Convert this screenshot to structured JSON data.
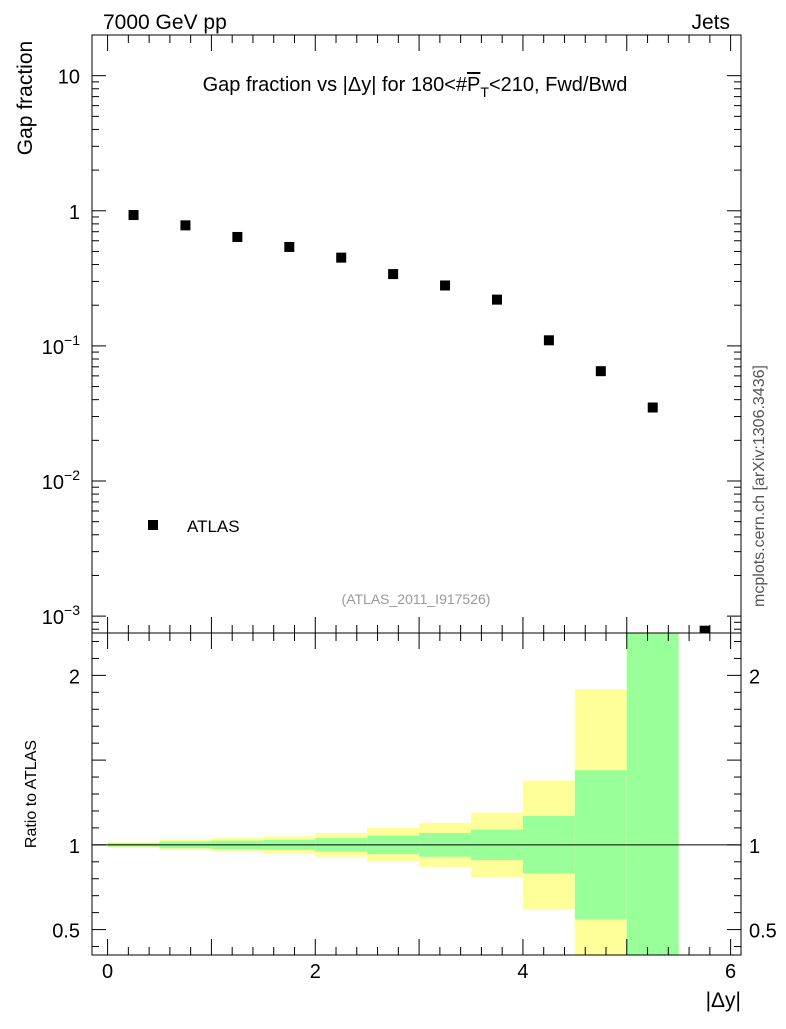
{
  "header": {
    "left": "7000 GeV pp",
    "right": "Jets"
  },
  "side_label": "mcplots.cern.ch [arXiv:1306.3436]",
  "chart_data": [
    {
      "type": "scatter",
      "title": "Gap fraction vs |Δy| for 180<#P̅T<210, Fwd/Bwd",
      "title_parts": {
        "pre": "Gap fraction vs |Δy| for 180<#",
        "sym": "P",
        "sub": "T",
        "post": "<210, Fwd/Bwd"
      },
      "ylabel": "Gap fraction",
      "yscale": "log",
      "ylim": [
        0.00075,
        20
      ],
      "xlim": [
        -0.15,
        6.1
      ],
      "y_ticks": [
        {
          "value": 10,
          "label": "10"
        },
        {
          "value": 1,
          "label": "1"
        },
        {
          "value": 0.1,
          "base": "10",
          "exp": "−1"
        },
        {
          "value": 0.01,
          "base": "10",
          "exp": "−2"
        },
        {
          "value": 0.001,
          "base": "10",
          "exp": "−3"
        }
      ],
      "legend": {
        "position": "bottom-left",
        "label": "ATLAS"
      },
      "watermark": "(ATLAS_2011_I917526)",
      "series": [
        {
          "name": "ATLAS",
          "x": [
            0.25,
            0.75,
            1.25,
            1.75,
            2.25,
            2.75,
            3.25,
            3.75,
            4.25,
            4.75,
            5.25,
            5.75
          ],
          "y": [
            0.93,
            0.78,
            0.64,
            0.54,
            0.45,
            0.34,
            0.28,
            0.22,
            0.11,
            0.065,
            0.035,
            0.00078
          ]
        }
      ]
    },
    {
      "type": "area",
      "ylabel": "Ratio to ATLAS",
      "xlabel": "|Δy|",
      "ylim": [
        0.35,
        2.25
      ],
      "xlim": [
        -0.15,
        6.1
      ],
      "x_ticks": [
        0,
        2,
        4,
        6
      ],
      "y_ticks": [
        0.5,
        1,
        2
      ],
      "reference_line": 1,
      "bins": [
        {
          "lo": 0.0,
          "hi": 0.5,
          "yellow": [
            0.985,
            1.015
          ],
          "green": [
            0.99,
            1.01
          ]
        },
        {
          "lo": 0.5,
          "hi": 1.0,
          "yellow": [
            0.97,
            1.03
          ],
          "green": [
            0.98,
            1.02
          ]
        },
        {
          "lo": 1.0,
          "hi": 1.5,
          "yellow": [
            0.96,
            1.04
          ],
          "green": [
            0.975,
            1.025
          ]
        },
        {
          "lo": 1.5,
          "hi": 2.0,
          "yellow": [
            0.95,
            1.05
          ],
          "green": [
            0.97,
            1.03
          ]
        },
        {
          "lo": 2.0,
          "hi": 2.5,
          "yellow": [
            0.93,
            1.07
          ],
          "green": [
            0.96,
            1.04
          ]
        },
        {
          "lo": 2.5,
          "hi": 3.0,
          "yellow": [
            0.9,
            1.1
          ],
          "green": [
            0.945,
            1.055
          ]
        },
        {
          "lo": 3.0,
          "hi": 3.5,
          "yellow": [
            0.87,
            1.13
          ],
          "green": [
            0.93,
            1.07
          ]
        },
        {
          "lo": 3.5,
          "hi": 4.0,
          "yellow": [
            0.81,
            1.19
          ],
          "green": [
            0.91,
            1.09
          ]
        },
        {
          "lo": 4.0,
          "hi": 4.5,
          "yellow": [
            0.62,
            1.38
          ],
          "green": [
            0.83,
            1.17
          ]
        },
        {
          "lo": 4.5,
          "hi": 5.0,
          "yellow": [
            0.35,
            1.92
          ],
          "green": [
            0.56,
            1.44
          ]
        },
        {
          "lo": 5.0,
          "hi": 5.5,
          "yellow": [
            0.35,
            2.25
          ],
          "green": [
            0.35,
            2.25
          ]
        }
      ],
      "colors": {
        "yellow": "#ffff99",
        "green": "#99ff99",
        "marker": "#000000"
      }
    }
  ]
}
